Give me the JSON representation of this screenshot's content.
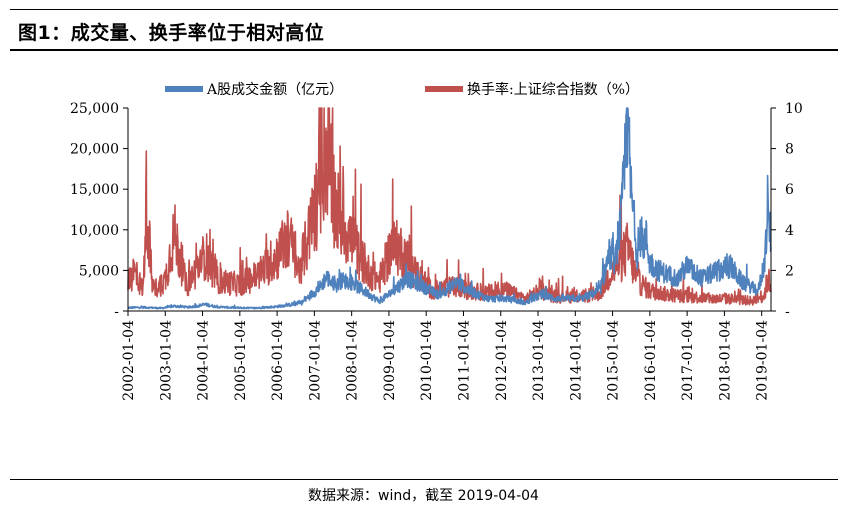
{
  "title": "图1：成交量、换手率位于相对高位",
  "source": "数据来源：wind，截至 2019-04-04",
  "chart_data": {
    "type": "line",
    "series": [
      {
        "name": "A股成交金额（亿元）",
        "axis": "left",
        "color": "#4f81bd",
        "points": [
          [
            "2002-01",
            400
          ],
          [
            "2002-06",
            450
          ],
          [
            "2002-12",
            350
          ],
          [
            "2003-04",
            600
          ],
          [
            "2003-09",
            450
          ],
          [
            "2004-02",
            800
          ],
          [
            "2004-06",
            500
          ],
          [
            "2004-12",
            400
          ],
          [
            "2005-06",
            350
          ],
          [
            "2005-12",
            500
          ],
          [
            "2006-04",
            700
          ],
          [
            "2006-09",
            1000
          ],
          [
            "2006-12",
            2000
          ],
          [
            "2007-03",
            3000
          ],
          [
            "2007-05",
            4200
          ],
          [
            "2007-08",
            3000
          ],
          [
            "2007-10",
            3800
          ],
          [
            "2008-01",
            3500
          ],
          [
            "2008-05",
            2500
          ],
          [
            "2008-10",
            1200
          ],
          [
            "2009-01",
            2000
          ],
          [
            "2009-04",
            3000
          ],
          [
            "2009-07",
            4000
          ],
          [
            "2009-12",
            3000
          ],
          [
            "2010-05",
            2000
          ],
          [
            "2010-11",
            3500
          ],
          [
            "2011-03",
            2500
          ],
          [
            "2011-09",
            1500
          ],
          [
            "2012-03",
            1500
          ],
          [
            "2012-09",
            1000
          ],
          [
            "2013-02",
            2000
          ],
          [
            "2013-07",
            1500
          ],
          [
            "2014-03",
            1500
          ],
          [
            "2014-09",
            2500
          ],
          [
            "2014-12",
            7000
          ],
          [
            "2015-02",
            6000
          ],
          [
            "2015-04",
            12000
          ],
          [
            "2015-06",
            23500
          ],
          [
            "2015-07",
            15000
          ],
          [
            "2015-09",
            7000
          ],
          [
            "2015-12",
            9000
          ],
          [
            "2016-01",
            6000
          ],
          [
            "2016-04",
            5000
          ],
          [
            "2016-10",
            4000
          ],
          [
            "2017-01",
            5500
          ],
          [
            "2017-06",
            4000
          ],
          [
            "2017-11",
            5000
          ],
          [
            "2018-03",
            5500
          ],
          [
            "2018-07",
            3500
          ],
          [
            "2018-12",
            2500
          ],
          [
            "2019-02",
            6000
          ],
          [
            "2019-03",
            11500
          ],
          [
            "2019-04",
            9500
          ]
        ]
      },
      {
        "name": "换手率:上证综合指数（%）",
        "axis": "right",
        "color": "#c0504d",
        "points": [
          [
            "2002-01",
            1.2
          ],
          [
            "2002-03",
            2.0
          ],
          [
            "2002-06",
            1.0
          ],
          [
            "2002-07",
            5.7
          ],
          [
            "2002-09",
            1.0
          ],
          [
            "2003-01",
            1.5
          ],
          [
            "2003-04",
            3.8
          ],
          [
            "2003-08",
            1.2
          ],
          [
            "2004-02",
            2.8
          ],
          [
            "2004-06",
            1.5
          ],
          [
            "2005-01",
            1.3
          ],
          [
            "2005-07",
            1.8
          ],
          [
            "2005-12",
            2.5
          ],
          [
            "2006-05",
            3.6
          ],
          [
            "2006-08",
            2.0
          ],
          [
            "2006-11",
            3.5
          ],
          [
            "2007-02",
            5.5
          ],
          [
            "2007-05",
            8.3
          ],
          [
            "2007-08",
            5.0
          ],
          [
            "2007-10",
            4.5
          ],
          [
            "2008-01",
            3.5
          ],
          [
            "2008-06",
            2.0
          ],
          [
            "2008-10",
            1.5
          ],
          [
            "2009-02",
            3.2
          ],
          [
            "2009-05",
            3.0
          ],
          [
            "2009-09",
            2.0
          ],
          [
            "2010-03",
            1.0
          ],
          [
            "2010-10",
            1.2
          ],
          [
            "2011-03",
            1.0
          ],
          [
            "2011-08",
            0.9
          ],
          [
            "2012-03",
            1.0
          ],
          [
            "2012-09",
            0.6
          ],
          [
            "2013-02",
            1.0
          ],
          [
            "2013-07",
            0.7
          ],
          [
            "2014-03",
            0.7
          ],
          [
            "2014-09",
            0.9
          ],
          [
            "2014-12",
            1.8
          ],
          [
            "2015-03",
            2.3
          ],
          [
            "2015-06",
            3.1
          ],
          [
            "2015-09",
            1.5
          ],
          [
            "2016-01",
            1.0
          ],
          [
            "2016-07",
            0.8
          ],
          [
            "2017-03",
            0.7
          ],
          [
            "2017-09",
            0.6
          ],
          [
            "2018-03",
            0.6
          ],
          [
            "2018-10",
            0.5
          ],
          [
            "2019-02",
            0.8
          ],
          [
            "2019-03",
            1.6
          ],
          [
            "2019-04",
            1.3
          ]
        ]
      }
    ],
    "y_left": {
      "ylim": [
        0,
        25000
      ],
      "ticks": [
        0,
        5000,
        10000,
        15000,
        20000,
        25000
      ],
      "tick_labels": [
        "-",
        "5,000",
        "10,000",
        "15,000",
        "20,000",
        "25,000"
      ]
    },
    "y_right": {
      "ylim": [
        0,
        10
      ],
      "ticks": [
        0,
        2,
        4,
        6,
        8,
        10
      ],
      "tick_labels": [
        "-",
        "2",
        "4",
        "6",
        "8",
        "10"
      ]
    },
    "x_start": "2002-01-04",
    "x_end": "2019-04-04",
    "x_ticks": [
      "2002-01-04",
      "2003-01-04",
      "2004-01-04",
      "2005-01-04",
      "2006-01-04",
      "2007-01-04",
      "2008-01-04",
      "2009-01-04",
      "2010-01-04",
      "2011-01-04",
      "2012-01-04",
      "2013-01-04",
      "2014-01-04",
      "2015-01-04",
      "2016-01-04",
      "2017-01-04",
      "2018-01-04",
      "2019-01-04"
    ],
    "legend_position": "top-center",
    "grid": false
  }
}
